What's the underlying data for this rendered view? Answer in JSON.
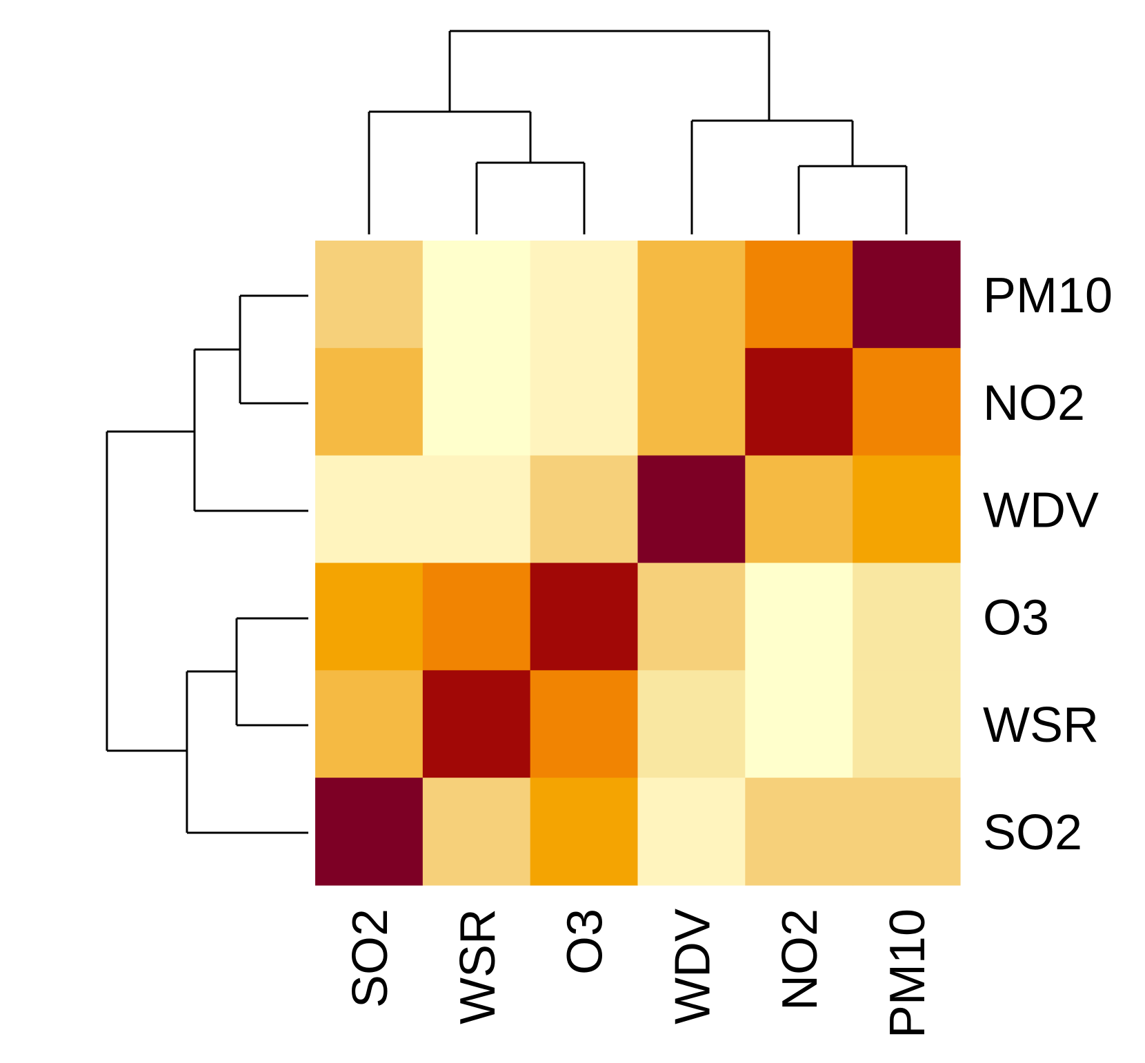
{
  "chart_data": {
    "type": "heatmap",
    "title": "",
    "xlabel": "",
    "ylabel": "",
    "x_categories": [
      "SO2",
      "WSR",
      "O3",
      "WDV",
      "NO2",
      "PM10"
    ],
    "y_categories": [
      "PM10",
      "NO2",
      "WDV",
      "O3",
      "WSR",
      "SO2"
    ],
    "values": [
      [
        0.35,
        0.02,
        0.1,
        0.45,
        0.65,
        1.0
      ],
      [
        0.45,
        0.02,
        0.1,
        0.45,
        0.9,
        0.72
      ],
      [
        0.12,
        0.12,
        0.35,
        1.0,
        0.45,
        0.55
      ],
      [
        0.55,
        0.65,
        0.9,
        0.35,
        0.02,
        0.2
      ],
      [
        0.45,
        0.9,
        0.72,
        0.2,
        0.02,
        0.2
      ],
      [
        1.0,
        0.35,
        0.55,
        0.12,
        0.35,
        0.35
      ]
    ],
    "value_range": [
      0,
      1
    ],
    "color_scale": [
      "#FFFFCC",
      "#FFF4BE",
      "#F9E7A1",
      "#F6D07A",
      "#F5BA43",
      "#F4A402",
      "#F18402",
      "#EC6404",
      "#A10806",
      "#7D0025"
    ],
    "legend": "none",
    "grid": false,
    "column_dendrogram": "top",
    "row_dendrogram": "left"
  }
}
